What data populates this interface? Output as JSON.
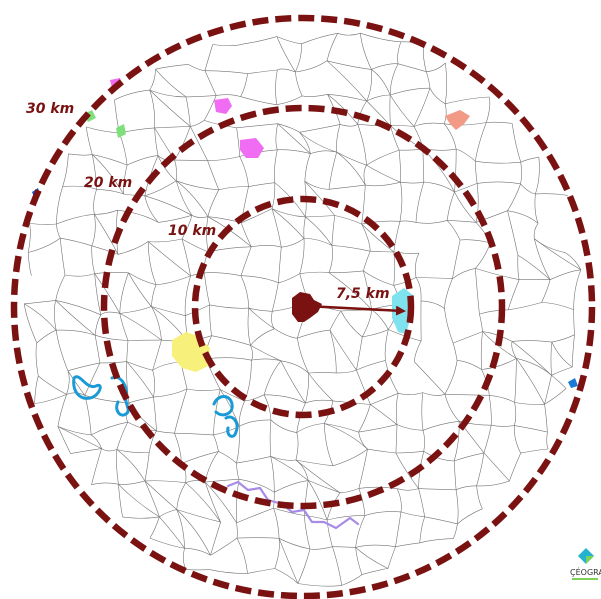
{
  "map": {
    "rings": [
      {
        "label": "30 km"
      },
      {
        "label": "20 km"
      },
      {
        "label": "10 km"
      }
    ],
    "distance": {
      "label": "7,5 km"
    },
    "logo": {
      "text": "ÇÉOGRAI"
    },
    "colors": {
      "ring": "#7a1212",
      "center_commune": "#7a1212",
      "target_commune": "#7fe3ef",
      "yellow_commune": "#f7f07a",
      "pink_commune": "#f06cf2",
      "salmon_commune": "#f29a86",
      "green_commune": "#7ee07a",
      "river_blue": "#1a9ad6",
      "river_purple": "#a78be6",
      "boundary": "#3c3c3c"
    }
  }
}
